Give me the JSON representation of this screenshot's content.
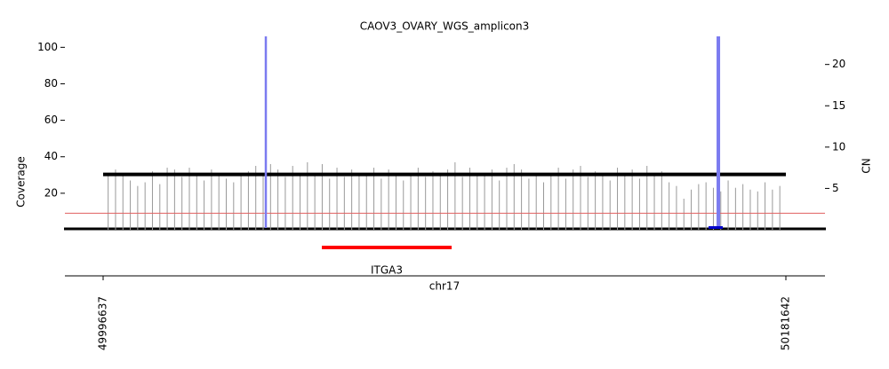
{
  "chart_data": {
    "type": "amplicon",
    "title": "CAOV3_OVARY_WGS_amplicon3",
    "ylabel": "Coverage",
    "y2label": "CN",
    "xlabel": "chr17",
    "xlim": [
      49986278,
      50192242
    ],
    "xticks": [
      49996637,
      50181642
    ],
    "ylim": [
      0,
      106
    ],
    "yticks": [
      20,
      40,
      60,
      80,
      100
    ],
    "y2lim": [
      0,
      23.4
    ],
    "y2ticks": [
      5,
      10,
      15,
      20
    ],
    "coverage": {
      "color": "#999999",
      "x": [
        49998000,
        50000000,
        50002000,
        50004000,
        50006000,
        50008000,
        50010000,
        50012000,
        50014000,
        50016000,
        50018000,
        50020000,
        50022000,
        50024000,
        50026000,
        50028000,
        50030000,
        50032000,
        50034000,
        50036000,
        50038000,
        50040000,
        50042000,
        50044000,
        50046000,
        50048000,
        50050000,
        50052000,
        50054000,
        50056000,
        50058000,
        50060000,
        50062000,
        50064000,
        50066000,
        50068000,
        50070000,
        50072000,
        50074000,
        50076000,
        50078000,
        50080000,
        50082000,
        50084000,
        50086000,
        50088000,
        50090000,
        50092000,
        50094000,
        50096000,
        50098000,
        50100000,
        50102000,
        50104000,
        50106000,
        50108000,
        50110000,
        50112000,
        50114000,
        50116000,
        50118000,
        50120000,
        50122000,
        50124000,
        50126000,
        50128000,
        50130000,
        50132000,
        50134000,
        50136000,
        50138000,
        50140000,
        50142000,
        50144000,
        50146000,
        50148000,
        50150000,
        50152000,
        50154000,
        50156000,
        50158000,
        50160000,
        50162000,
        50164000,
        50166000,
        50168000,
        50170000,
        50172000,
        50174000,
        50176000,
        50178000,
        50180000
      ],
      "values": [
        31,
        33,
        30,
        27,
        24,
        26,
        32,
        25,
        34,
        33,
        29,
        34,
        31,
        27,
        33,
        30,
        28,
        26,
        31,
        32,
        35,
        30,
        36,
        33,
        29,
        35,
        31,
        37,
        30,
        36,
        28,
        34,
        29,
        33,
        31,
        30,
        34,
        28,
        33,
        30,
        27,
        30,
        34,
        29,
        32,
        31,
        33,
        37,
        29,
        34,
        31,
        30,
        33,
        27,
        34,
        36,
        33,
        28,
        30,
        26,
        31,
        34,
        28,
        33,
        35,
        29,
        32,
        30,
        27,
        34,
        31,
        33,
        28,
        35,
        30,
        32,
        26,
        24,
        17,
        22,
        25,
        26,
        23,
        21,
        27,
        23,
        25,
        22,
        21,
        26,
        22,
        24
      ]
    },
    "segments": {
      "color": "#000000",
      "start": [
        49996637
      ],
      "end": [
        50181642
      ],
      "cn": [
        6.7
      ]
    },
    "cn_reference": {
      "value": 2,
      "color": "#e06060"
    },
    "breakpoints": {
      "color": "#7b7bf0",
      "x": [
        50040723,
        50163344
      ]
    },
    "genes": [
      {
        "name": "ITGA3",
        "start": 50055900,
        "end": 50091072,
        "color": "#ff0000"
      }
    ]
  }
}
